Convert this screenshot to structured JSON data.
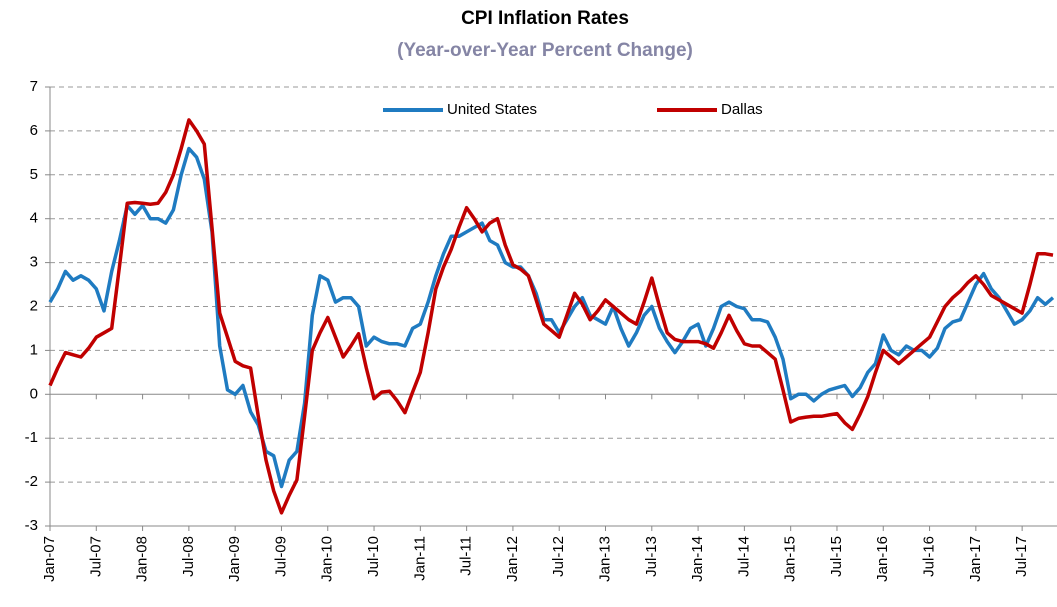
{
  "chart_data": {
    "type": "line",
    "title": "CPI Inflation Rates",
    "subtitle": "(Year-over-Year Percent Change)",
    "categories": [
      "Jan-07",
      null,
      null,
      null,
      null,
      null,
      "Jul-07",
      null,
      null,
      null,
      null,
      null,
      "Jan-08",
      null,
      null,
      null,
      null,
      null,
      "Jul-08",
      null,
      null,
      null,
      null,
      null,
      "Jan-09",
      null,
      null,
      null,
      null,
      null,
      "Jul-09",
      null,
      null,
      null,
      null,
      null,
      "Jan-10",
      null,
      null,
      null,
      null,
      null,
      "Jul-10",
      null,
      null,
      null,
      null,
      null,
      "Jan-11",
      null,
      null,
      null,
      null,
      null,
      "Jul-11",
      null,
      null,
      null,
      null,
      null,
      "Jan-12",
      null,
      null,
      null,
      null,
      null,
      "Jul-12",
      null,
      null,
      null,
      null,
      null,
      "Jan-13",
      null,
      null,
      null,
      null,
      null,
      "Jul-13",
      null,
      null,
      null,
      null,
      null,
      "Jan-14",
      null,
      null,
      null,
      null,
      null,
      "Jul-14",
      null,
      null,
      null,
      null,
      null,
      "Jan-15",
      null,
      null,
      null,
      null,
      null,
      "Jul-15",
      null,
      null,
      null,
      null,
      null,
      "Jan-16",
      null,
      null,
      null,
      null,
      null,
      "Jul-16",
      null,
      null,
      null,
      null,
      null,
      "Jan-17",
      null,
      null,
      null,
      null,
      null,
      "Jul-17",
      null,
      null,
      null,
      null
    ],
    "series": [
      {
        "name": "United States",
        "color": "#1f7bc1",
        "values": [
          2.1,
          2.4,
          2.8,
          2.6,
          2.7,
          2.6,
          2.4,
          1.9,
          2.8,
          3.5,
          4.3,
          4.1,
          4.3,
          4.0,
          4.0,
          3.9,
          4.2,
          5.0,
          5.6,
          5.4,
          4.9,
          3.7,
          1.1,
          0.1,
          0.0,
          0.2,
          -0.4,
          -0.7,
          -1.3,
          -1.4,
          -2.1,
          -1.5,
          -1.3,
          -0.2,
          1.8,
          2.7,
          2.6,
          2.1,
          2.2,
          2.2,
          2.0,
          1.1,
          1.3,
          1.2,
          1.15,
          1.15,
          1.1,
          1.5,
          1.6,
          2.1,
          2.7,
          3.2,
          3.6,
          3.6,
          3.7,
          3.8,
          3.9,
          3.5,
          3.4,
          3.0,
          2.9,
          2.9,
          2.7,
          2.3,
          1.7,
          1.7,
          1.4,
          1.7,
          2.0,
          2.2,
          1.8,
          1.7,
          1.6,
          2.0,
          1.5,
          1.1,
          1.4,
          1.8,
          2.0,
          1.5,
          1.2,
          0.95,
          1.2,
          1.5,
          1.6,
          1.1,
          1.5,
          2.0,
          2.1,
          2.0,
          1.95,
          1.7,
          1.7,
          1.65,
          1.3,
          0.8,
          -0.1,
          0.0,
          0.0,
          -0.15,
          0.0,
          0.1,
          0.15,
          0.2,
          -0.05,
          0.15,
          0.5,
          0.7,
          1.35,
          1.0,
          0.9,
          1.1,
          1.0,
          1.0,
          0.85,
          1.05,
          1.5,
          1.65,
          1.7,
          2.1,
          2.5,
          2.75,
          2.4,
          2.2,
          1.9,
          1.6,
          1.7,
          1.9,
          2.2,
          2.05,
          2.2
        ]
      },
      {
        "name": "Dallas",
        "color": "#c00000",
        "values": [
          0.2,
          0.6,
          0.95,
          0.9,
          0.85,
          1.05,
          1.3,
          1.4,
          1.5,
          2.9,
          4.35,
          4.37,
          4.35,
          4.33,
          4.35,
          4.6,
          5.0,
          5.6,
          6.25,
          6.0,
          5.7,
          3.8,
          1.85,
          1.3,
          0.75,
          0.65,
          0.6,
          -0.5,
          -1.5,
          -2.2,
          -2.7,
          -2.3,
          -1.95,
          -0.5,
          1.0,
          1.4,
          1.75,
          1.3,
          0.85,
          1.1,
          1.38,
          0.6,
          -0.1,
          0.05,
          0.07,
          -0.15,
          -0.42,
          0.05,
          0.5,
          1.4,
          2.4,
          2.9,
          3.3,
          3.8,
          4.25,
          4.0,
          3.7,
          3.9,
          4.0,
          3.4,
          2.95,
          2.85,
          2.7,
          2.15,
          1.6,
          1.45,
          1.3,
          1.8,
          2.3,
          2.05,
          1.7,
          1.9,
          2.15,
          2.0,
          1.85,
          1.7,
          1.6,
          2.1,
          2.65,
          2.0,
          1.4,
          1.25,
          1.2,
          1.2,
          1.2,
          1.15,
          1.05,
          1.4,
          1.8,
          1.45,
          1.15,
          1.1,
          1.1,
          0.95,
          0.8,
          0.1,
          -0.63,
          -0.55,
          -0.52,
          -0.5,
          -0.5,
          -0.47,
          -0.44,
          -0.65,
          -0.8,
          -0.45,
          -0.05,
          0.5,
          1.0,
          0.85,
          0.7,
          0.85,
          1.0,
          1.15,
          1.3,
          1.65,
          2.0,
          2.2,
          2.35,
          2.55,
          2.7,
          2.5,
          2.25,
          2.15,
          2.05,
          1.95,
          1.85,
          2.5,
          3.2,
          3.2,
          3.17
        ]
      }
    ],
    "ylim": [
      -3,
      7
    ],
    "yticks": [
      -3,
      -2,
      -1,
      0,
      1,
      2,
      3,
      4,
      5,
      6,
      7
    ],
    "grid": true,
    "legend": "top"
  }
}
